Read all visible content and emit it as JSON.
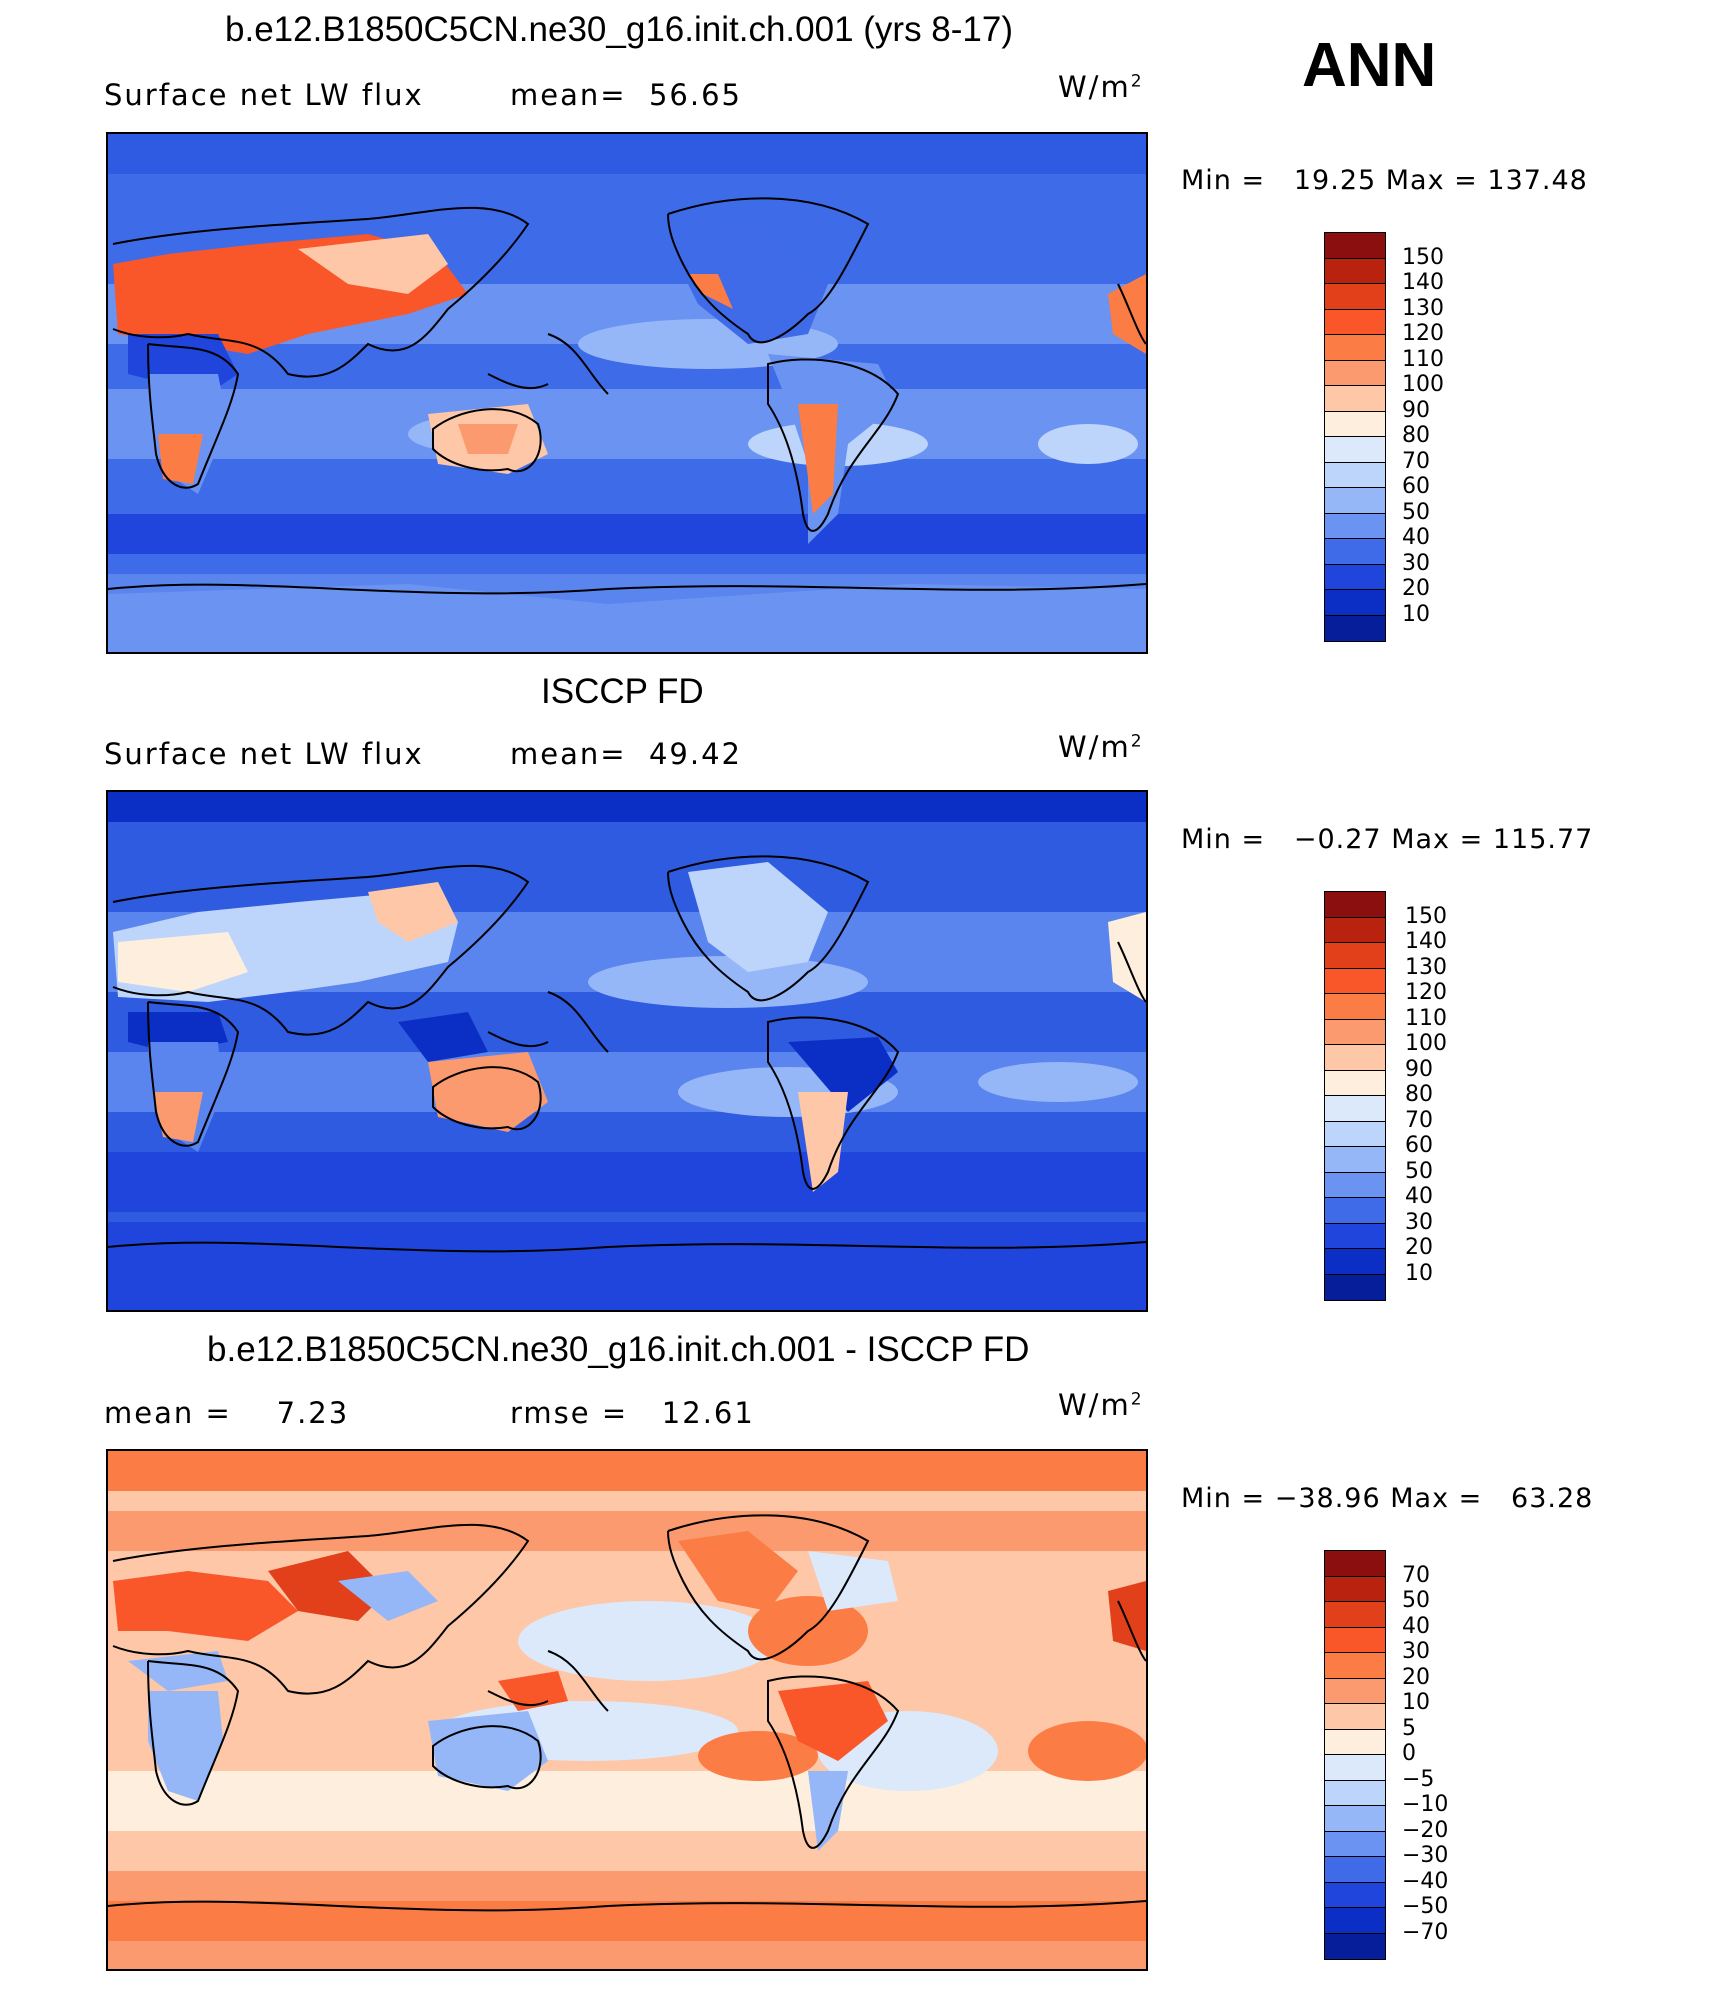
{
  "season": "ANN",
  "units": {
    "base": "W/m",
    "exp": "2"
  },
  "panels": [
    {
      "title": "b.e12.B1850C5CN.ne30_g16.init.ch.001 (yrs 8-17)",
      "left_label": "Surface net LW flux",
      "mid_label": "mean=",
      "mid_value": "56.65",
      "min_label": "Min =",
      "min_value": "19.25",
      "max_label": "Max =",
      "max_value": "137.48",
      "colorbar_labels": [
        "150",
        "140",
        "130",
        "120",
        "110",
        "100",
        "90",
        "80",
        "70",
        "60",
        "50",
        "40",
        "30",
        "20",
        "10"
      ],
      "background_color": "#3e6be8",
      "land_color": "#f28a5a"
    },
    {
      "title": "ISCCP FD",
      "left_label": "Surface net LW flux",
      "mid_label": "mean=",
      "mid_value": "49.42",
      "min_label": "Min =",
      "min_value": "−0.27",
      "max_label": "Max =",
      "max_value": "115.77",
      "colorbar_labels": [
        "150",
        "140",
        "130",
        "120",
        "110",
        "100",
        "90",
        "80",
        "70",
        "60",
        "50",
        "40",
        "30",
        "20",
        "10"
      ],
      "background_color": "#2f5be0",
      "land_color": "#f6b58e"
    },
    {
      "title": "b.e12.B1850C5CN.ne30_g16.init.ch.001 - ISCCP FD",
      "left_label": "mean =",
      "left_value": "7.23",
      "mid_label": "rmse =",
      "mid_value": "12.61",
      "min_label": "Min =",
      "min_value": "−38.96",
      "max_label": "Max =",
      "max_value": "63.28",
      "colorbar_labels": [
        "70",
        "50",
        "40",
        "30",
        "20",
        "10",
        "5",
        "0",
        "−5",
        "−10",
        "−20",
        "−30",
        "−40",
        "−50",
        "−70"
      ],
      "background_color": "#f7c2a6",
      "land_color": "#a9c5f5"
    }
  ],
  "colorbar_colors": [
    "#8b0f0f",
    "#b8220f",
    "#e2401a",
    "#f9572a",
    "#fb7c45",
    "#fb9a6e",
    "#fdc7a8",
    "#fdeede",
    "#dbe9fb",
    "#bdd4fb",
    "#95b7f7",
    "#6b93f1",
    "#3f6ae8",
    "#1f45dd",
    "#0b2fc4",
    "#061e9a"
  ]
}
